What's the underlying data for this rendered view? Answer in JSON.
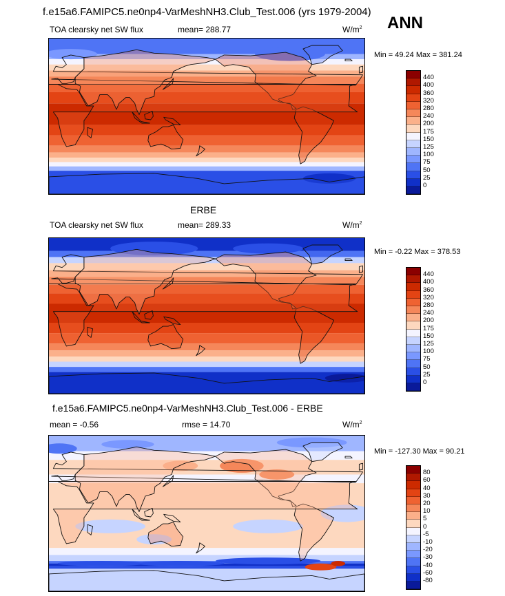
{
  "header": {
    "top_title": "f.e15a6.FAMIPC5.ne0np4-VarMeshNH3.Club_Test.006 (yrs 1979-2004)",
    "season": "ANN"
  },
  "panels": [
    {
      "id": "model",
      "title": "",
      "variable": "TOA clearsky net SW flux",
      "mean_text": "mean= 288.77",
      "units_base": "W/m",
      "units_exp": "2",
      "min_max_text": "Min =  49.24 Max = 381.24",
      "colorbar_labels": [
        "440",
        "400",
        "360",
        "320",
        "280",
        "240",
        "200",
        "175",
        "150",
        "125",
        "100",
        "75",
        "50",
        "25",
        "0"
      ]
    },
    {
      "id": "obs",
      "title": "ERBE",
      "variable": "TOA clearsky net SW flux",
      "mean_text": "mean= 289.33",
      "units_base": "W/m",
      "units_exp": "2",
      "min_max_text": "Min =  -0.22 Max = 378.53",
      "colorbar_labels": [
        "440",
        "400",
        "360",
        "320",
        "280",
        "240",
        "200",
        "175",
        "150",
        "125",
        "100",
        "75",
        "50",
        "25",
        "0"
      ]
    },
    {
      "id": "diff",
      "title": "f.e15a6.FAMIPC5.ne0np4-VarMeshNH3.Club_Test.006 - ERBE",
      "mean_text": "mean =  -0.56",
      "rmse_text": "rmse =  14.70",
      "units_base": "W/m",
      "units_exp": "2",
      "min_max_text": "Min = -127.30 Max =  90.21",
      "colorbar_labels": [
        "80",
        "60",
        "40",
        "30",
        "20",
        "10",
        "5",
        "0",
        "-5",
        "-10",
        "-20",
        "-30",
        "-40",
        "-60",
        "-80"
      ]
    }
  ],
  "colors": {
    "abs_scale": [
      "#8b0000",
      "#b01800",
      "#cc2a00",
      "#e34414",
      "#ef6232",
      "#f5875a",
      "#fbb08a",
      "#fdd8bf",
      "#f4f4ff",
      "#c6d4ff",
      "#9fb6ff",
      "#7a98ff",
      "#4f74f5",
      "#2a4fe6",
      "#1030c8",
      "#0a1a9a"
    ],
    "diff_scale": [
      "#8b0000",
      "#b01800",
      "#cc2a00",
      "#e34414",
      "#ef6232",
      "#f5875a",
      "#fbb08a",
      "#fdd8bf",
      "#f4f4ff",
      "#c6d4ff",
      "#9fb6ff",
      "#7a98ff",
      "#4f74f5",
      "#2a4fe6",
      "#1030c8",
      "#0a1a9a"
    ]
  }
}
